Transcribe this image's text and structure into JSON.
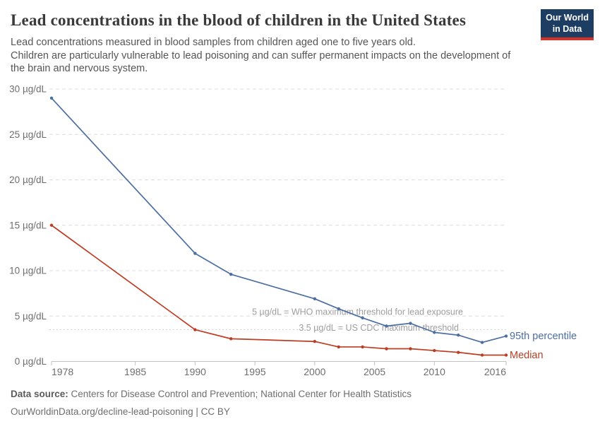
{
  "header": {
    "title": "Lead concentrations in the blood of children in the United States",
    "subtitle_lines": [
      "Lead concentrations measured in blood samples from children aged one to five years old.",
      "Children are particularly vulnerable to lead poisoning and can suffer permanent impacts on the development of",
      "the brain and nervous system."
    ],
    "logo": {
      "line1": "Our World",
      "line2": "in Data",
      "bg_color": "#1d3d63",
      "accent_color": "#dc2f23"
    }
  },
  "footer": {
    "source_label": "Data source:",
    "source_text": " Centers for Disease Control and Prevention; National Center for Health Statistics",
    "url_text": "OurWorldinData.org/decline-lead-poisoning | CC BY"
  },
  "chart_data": {
    "type": "line",
    "title": "Lead concentrations in the blood of children in the United States",
    "unit": "µg/dL",
    "x": [
      1978,
      1990,
      1993,
      2000,
      2002,
      2004,
      2006,
      2008,
      2010,
      2012,
      2014,
      2016
    ],
    "series": [
      {
        "name": "95th percentile",
        "color": "#4d6ea1",
        "values": [
          29.0,
          11.9,
          9.6,
          6.9,
          5.8,
          4.8,
          3.9,
          4.2,
          3.2,
          2.9,
          2.1,
          2.8
        ]
      },
      {
        "name": "Median",
        "color": "#bd3d22",
        "values": [
          15.0,
          3.5,
          2.5,
          2.2,
          1.6,
          1.6,
          1.4,
          1.4,
          1.2,
          1.0,
          0.7,
          0.7
        ]
      }
    ],
    "x_ticks": [
      1978,
      1985,
      1990,
      1995,
      2000,
      2005,
      2010,
      2016
    ],
    "y_ticks": [
      0,
      5,
      10,
      15,
      20,
      25,
      30
    ],
    "xlim": [
      1978,
      2016
    ],
    "ylim": [
      0,
      30
    ],
    "grid": true,
    "legend_position": "line-end-labels",
    "annotations": [
      {
        "text": "5 µg/dL = WHO maximum threshold for lead exposure",
        "y": 5,
        "line_style": "dashed-gridline"
      },
      {
        "text": "3.5 µg/dL = US CDC maximum threshold",
        "y": 3.5,
        "line_style": "dotted"
      }
    ]
  }
}
